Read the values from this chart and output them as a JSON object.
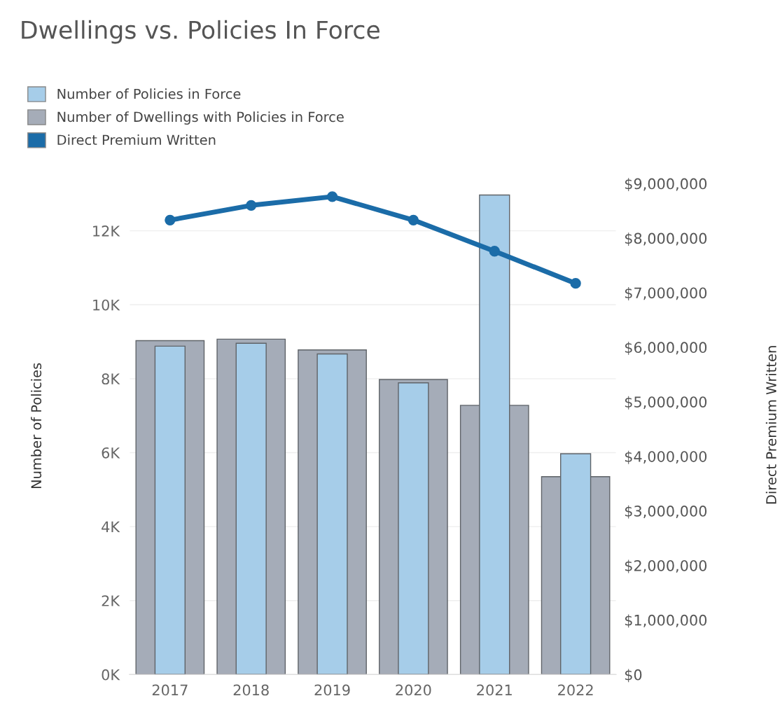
{
  "chart_data": {
    "type": "bar",
    "title": "Dwellings vs. Policies In Force",
    "categories": [
      "2017",
      "2018",
      "2019",
      "2020",
      "2021",
      "2022"
    ],
    "series": [
      {
        "name": "Number of Dwellings with Policies in Force",
        "color": "#a5acb8",
        "values": [
          9030,
          9070,
          8780,
          7980,
          7280,
          5350
        ]
      },
      {
        "name": "Number of Policies in Force",
        "color": "#a6cde9",
        "values": [
          8880,
          8960,
          8670,
          7890,
          12970,
          5970
        ]
      },
      {
        "name": "Direct Premium Written",
        "type": "line",
        "axis": "y2",
        "color": "#1b6ca8",
        "marker": "circle",
        "values": [
          8330000,
          8600000,
          8760000,
          8330000,
          7760000,
          7170000
        ]
      }
    ],
    "ylabel": "Number of Policies",
    "y2label": "Direct Premium Written",
    "ylim": [
      0,
      13500
    ],
    "yticks": [
      {
        "value": 0,
        "label": "0K"
      },
      {
        "value": 2000,
        "label": "2K"
      },
      {
        "value": 4000,
        "label": "4K"
      },
      {
        "value": 6000,
        "label": "6K"
      },
      {
        "value": 8000,
        "label": "8K"
      },
      {
        "value": 10000,
        "label": "10K"
      },
      {
        "value": 12000,
        "label": "12K"
      }
    ],
    "y2lim": [
      0,
      9150000
    ],
    "y2ticks": [
      {
        "value": 0,
        "label": "$0"
      },
      {
        "value": 1000000,
        "label": "$1,000,000"
      },
      {
        "value": 2000000,
        "label": "$2,000,000"
      },
      {
        "value": 3000000,
        "label": "$3,000,000"
      },
      {
        "value": 4000000,
        "label": "$4,000,000"
      },
      {
        "value": 5000000,
        "label": "$5,000,000"
      },
      {
        "value": 6000000,
        "label": "$6,000,000"
      },
      {
        "value": 7000000,
        "label": "$7,000,000"
      },
      {
        "value": 8000000,
        "label": "$8,000,000"
      },
      {
        "value": 9000000,
        "label": "$9,000,000"
      }
    ],
    "grid": "y",
    "legend": "top left"
  }
}
